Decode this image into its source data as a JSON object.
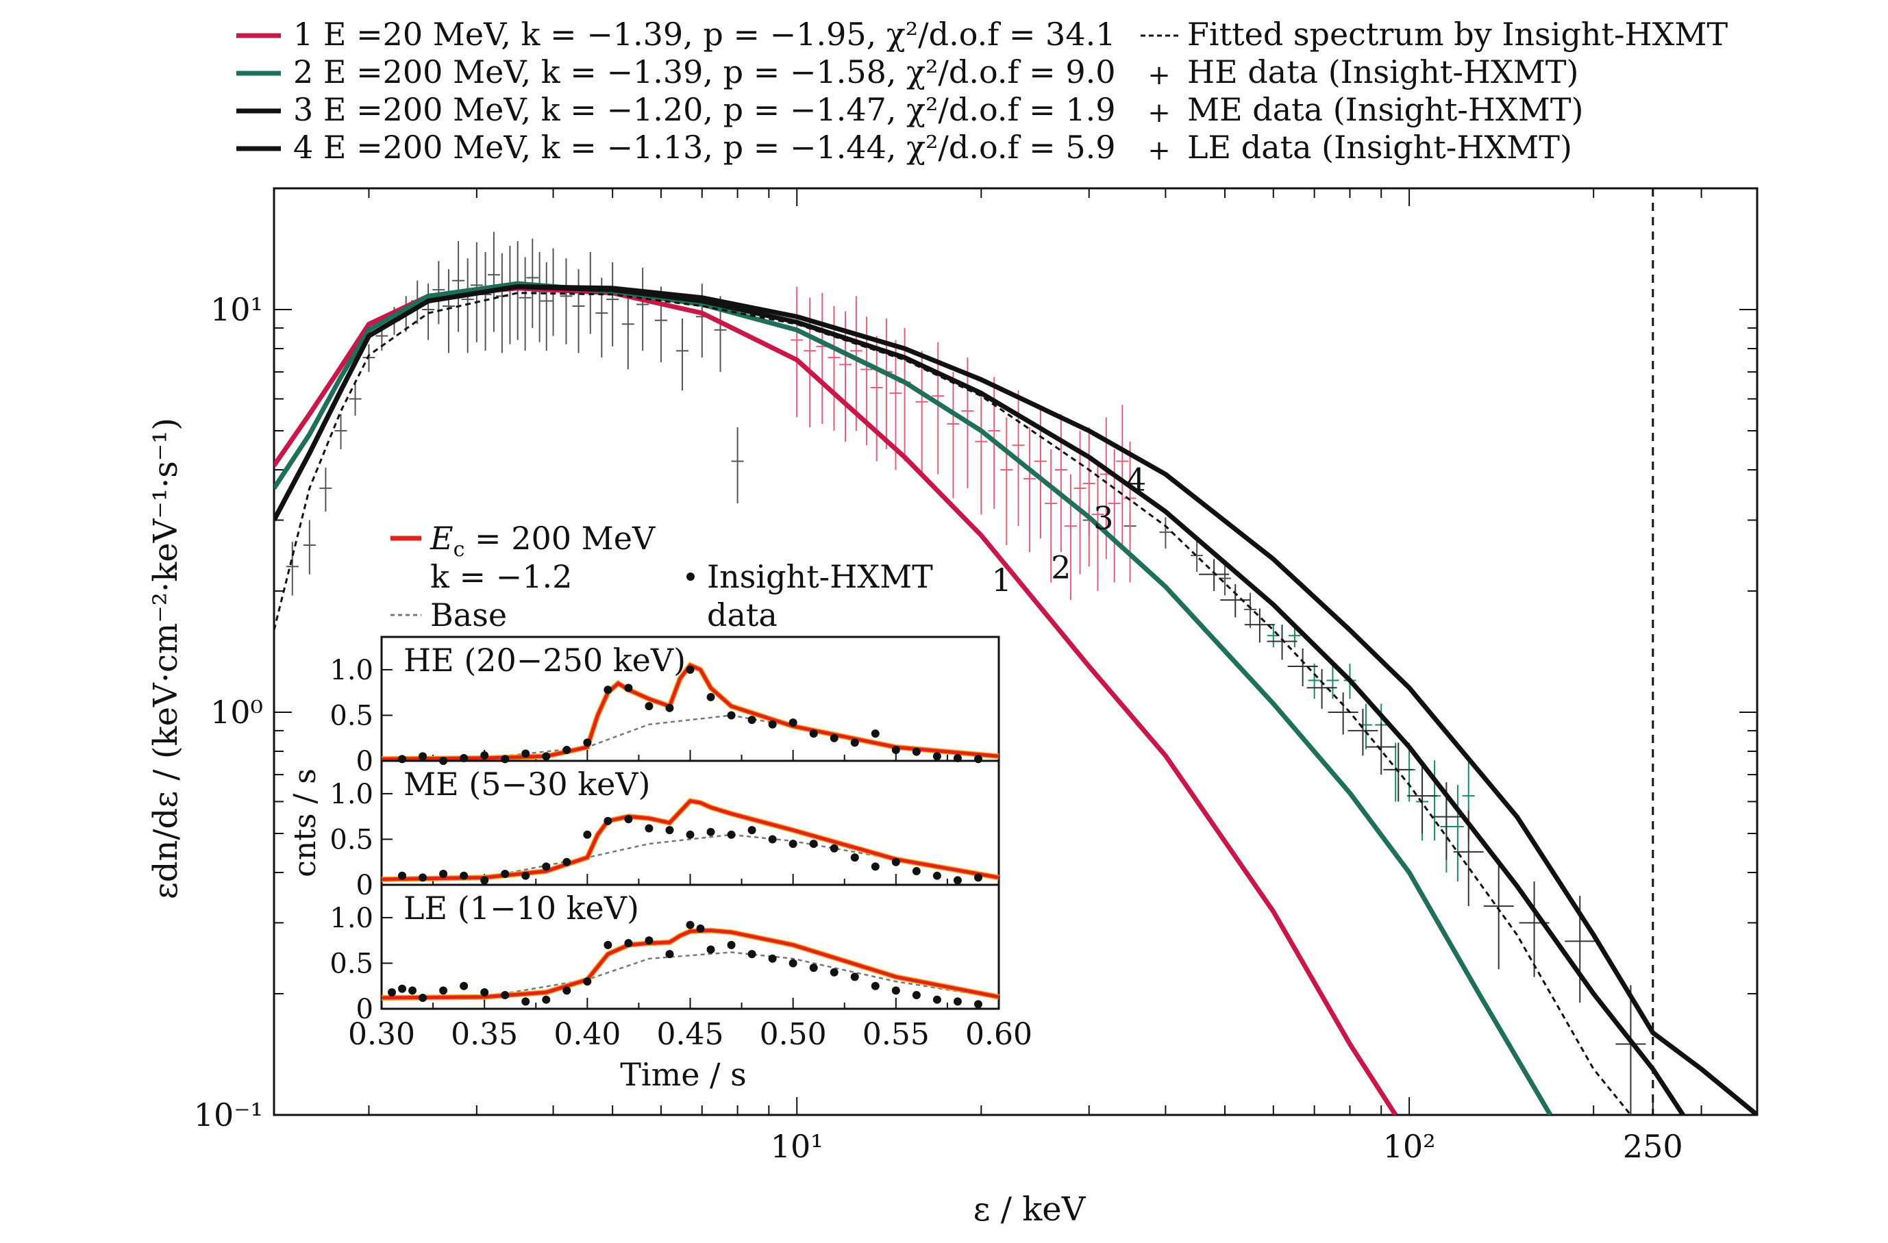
{
  "chart_data": [
    {
      "type": "line",
      "title": "",
      "xlabel": "ε / keV",
      "ylabel": "εdn/dε / (keV·cm⁻²·keV⁻¹·s⁻¹)",
      "x_scale": "log",
      "y_scale": "log",
      "xlim": [
        1.4,
        370
      ],
      "ylim": [
        0.1,
        20
      ],
      "x_ticks": [
        {
          "value": 10,
          "label": "10¹"
        },
        {
          "value": 100,
          "label": "10²"
        },
        {
          "value": 250,
          "label": "250"
        }
      ],
      "y_ticks": [
        {
          "value": 0.1,
          "label": "10⁻¹"
        },
        {
          "value": 1,
          "label": "10⁰"
        },
        {
          "value": 10,
          "label": "10¹"
        }
      ],
      "vline": 250,
      "grid": false,
      "legend_position": "top",
      "legend": [
        {
          "key": "m1",
          "text": "1 E =20 MeV, k = −1.39, p = −1.95, χ²/d.o.f = 34.1",
          "color": "#c8184a"
        },
        {
          "key": "m2",
          "text": "2 E =200 MeV, k = −1.39, p = −1.58, χ²/d.o.f = 9.0",
          "color": "#1f6f5a"
        },
        {
          "key": "m3",
          "text": "3 E =200 MeV, k = −1.20, p = −1.47, χ²/d.o.f = 1.9",
          "color": "#111111"
        },
        {
          "key": "m4",
          "text": "4 E =200 MeV, k = −1.13, p = −1.44, χ²/d.o.f = 5.9",
          "color": "#111111"
        },
        {
          "key": "fit",
          "text": "Fitted spectrum by Insight-HXMT",
          "color": "#111111"
        },
        {
          "key": "he",
          "text": "HE data (Insight-HXMT)",
          "color": "#1a8a6a"
        },
        {
          "key": "me",
          "text": "ME data (Insight-HXMT)",
          "color": "#e0607a"
        },
        {
          "key": "le",
          "text": "LE data (Insight-HXMT)",
          "color": "#333333"
        }
      ],
      "series": [
        {
          "key": "m1",
          "label": "1",
          "color": "#c8184a",
          "x": [
            1.4,
            1.6,
            1.8,
            2.0,
            2.5,
            3.5,
            5,
            7,
            10,
            15,
            20,
            30,
            40,
            60,
            80,
            95
          ],
          "y": [
            4.1,
            5.5,
            7.2,
            9.2,
            10.8,
            11.3,
            11.0,
            9.8,
            7.5,
            4.3,
            2.75,
            1.3,
            0.78,
            0.32,
            0.15,
            0.1
          ]
        },
        {
          "key": "m2",
          "label": "2",
          "color": "#1f6f5a",
          "x": [
            1.4,
            1.6,
            1.8,
            2.0,
            2.5,
            3.5,
            5,
            7,
            10,
            15,
            20,
            30,
            40,
            60,
            80,
            100,
            130,
            170
          ],
          "y": [
            3.6,
            4.9,
            6.8,
            8.9,
            10.8,
            11.6,
            11.1,
            10.3,
            8.9,
            6.6,
            5.0,
            3.05,
            2.05,
            1.05,
            0.63,
            0.4,
            0.2,
            0.1
          ]
        },
        {
          "key": "m3",
          "label": "3",
          "color": "#111111",
          "x": [
            1.4,
            1.6,
            1.8,
            2.0,
            2.5,
            3.5,
            5,
            7,
            10,
            15,
            20,
            30,
            40,
            60,
            80,
            100,
            150,
            200,
            250,
            280
          ],
          "y": [
            3.0,
            4.4,
            6.3,
            8.6,
            10.5,
            11.4,
            11.2,
            10.5,
            9.3,
            7.6,
            6.2,
            4.3,
            3.15,
            1.85,
            1.2,
            0.82,
            0.37,
            0.2,
            0.13,
            0.1
          ]
        },
        {
          "key": "m4",
          "label": "4",
          "color": "#111111",
          "x": [
            1.4,
            1.6,
            1.8,
            2.0,
            2.5,
            3.5,
            5,
            7,
            10,
            15,
            20,
            30,
            40,
            60,
            80,
            100,
            150,
            200,
            250,
            300,
            370
          ],
          "y": [
            3.0,
            4.4,
            6.3,
            8.6,
            10.5,
            11.4,
            11.3,
            10.7,
            9.6,
            8.0,
            6.7,
            5.0,
            3.9,
            2.4,
            1.6,
            1.15,
            0.55,
            0.28,
            0.16,
            0.13,
            0.1
          ]
        },
        {
          "key": "fit",
          "color": "#111111",
          "dashed": true,
          "x": [
            1.4,
            1.6,
            1.8,
            2.0,
            2.5,
            3.5,
            5,
            7,
            10,
            15,
            20,
            30,
            40,
            60,
            80,
            100,
            150,
            200,
            230
          ],
          "y": [
            1.6,
            3.6,
            5.6,
            7.7,
            9.8,
            11.0,
            10.9,
            10.2,
            9.2,
            7.5,
            6.1,
            4.0,
            2.9,
            1.6,
            1.0,
            0.66,
            0.28,
            0.13,
            0.1
          ]
        }
      ],
      "error_series": [
        {
          "key": "le",
          "color": "#555555",
          "x": [
            1.5,
            1.6,
            1.7,
            1.8,
            1.9,
            2.0,
            2.1,
            2.2,
            2.3,
            2.4,
            2.5,
            2.6,
            2.7,
            2.8,
            2.9,
            3.0,
            3.1,
            3.2,
            3.3,
            3.4,
            3.5,
            3.6,
            3.7,
            3.8,
            3.9,
            4.0,
            4.2,
            4.4,
            4.6,
            4.8,
            5.0,
            5.3,
            5.6,
            6.0,
            6.5,
            7.0,
            7.5,
            8.0,
            30,
            35,
            40,
            45,
            50,
            55
          ],
          "y": [
            2.3,
            2.6,
            3.6,
            5.0,
            6.0,
            7.6,
            8.6,
            9.4,
            9.8,
            10.5,
            10.0,
            11.2,
            10.2,
            11.8,
            10.6,
            11.5,
            10.9,
            12.2,
            10.8,
            11.3,
            11.6,
            10.7,
            12.0,
            11.1,
            10.5,
            11.4,
            10.8,
            10.2,
            11.3,
            9.8,
            10.6,
            9.2,
            10.3,
            9.4,
            7.9,
            9.6,
            8.9,
            4.2,
            3.0,
            2.9,
            2.8,
            2.45,
            2.15,
            1.8
          ],
          "err": [
            0.35,
            0.4,
            0.45,
            0.5,
            0.55,
            0.6,
            0.7,
            0.75,
            1.0,
            1.3,
            1.6,
            2.0,
            2.4,
            3.0,
            2.8,
            3.2,
            3.0,
            3.4,
            3.0,
            3.1,
            3.2,
            2.8,
            3.0,
            2.8,
            2.6,
            2.8,
            2.6,
            2.4,
            2.6,
            2.2,
            2.5,
            2.1,
            2.4,
            2.0,
            1.6,
            2.0,
            1.9,
            0.9,
            0.25,
            0.25,
            0.25,
            0.22,
            0.2,
            0.18
          ]
        },
        {
          "key": "me",
          "color": "#e0607a",
          "x": [
            10,
            10.5,
            11,
            11.5,
            12,
            12.5,
            13,
            13.5,
            14,
            14.5,
            15,
            16,
            17,
            18,
            19,
            20,
            21,
            22,
            23,
            24,
            25,
            26,
            27,
            28,
            29,
            30,
            31,
            32,
            33,
            34,
            35
          ],
          "y": [
            8.4,
            7.9,
            8.1,
            7.6,
            7.3,
            7.9,
            7.1,
            6.4,
            7.0,
            6.2,
            6.6,
            5.9,
            6.1,
            5.2,
            5.6,
            4.7,
            5.0,
            4.0,
            4.6,
            3.8,
            4.2,
            3.3,
            4.0,
            2.9,
            3.6,
            3.7,
            3.1,
            3.9,
            3.3,
            4.2,
            3.4
          ],
          "err": [
            3.0,
            2.8,
            2.9,
            2.6,
            2.6,
            2.9,
            2.5,
            2.2,
            2.5,
            2.2,
            2.4,
            2.0,
            2.2,
            1.8,
            2.0,
            1.6,
            1.8,
            1.4,
            1.7,
            1.3,
            1.5,
            1.2,
            1.5,
            1.0,
            1.4,
            1.4,
            1.1,
            1.5,
            1.2,
            1.6,
            1.3
          ]
        },
        {
          "key": "he",
          "color": "#1a8a6a",
          "x": [
            60,
            65,
            70,
            75,
            80,
            85,
            90,
            95,
            100,
            105,
            110,
            115,
            120,
            125
          ],
          "y": [
            1.55,
            1.55,
            1.2,
            1.2,
            1.2,
            0.93,
            0.93,
            0.72,
            0.72,
            0.6,
            0.62,
            0.52,
            0.52,
            0.62
          ],
          "err": [
            0.1,
            0.1,
            0.12,
            0.12,
            0.12,
            0.12,
            0.12,
            0.12,
            0.12,
            0.12,
            0.14,
            0.12,
            0.14,
            0.14
          ]
        },
        {
          "key": "le_hi",
          "color": "#333333",
          "x": [
            48,
            52,
            57,
            62,
            67,
            72,
            78,
            84,
            90,
            96,
            105,
            115,
            125,
            140,
            160,
            190,
            230
          ],
          "y": [
            2.2,
            1.9,
            1.65,
            1.5,
            1.3,
            1.15,
            1.0,
            0.9,
            0.82,
            0.72,
            0.62,
            0.55,
            0.45,
            0.33,
            0.3,
            0.27,
            0.15
          ],
          "err": [
            0.2,
            0.18,
            0.16,
            0.15,
            0.14,
            0.13,
            0.12,
            0.12,
            0.12,
            0.12,
            0.12,
            0.12,
            0.12,
            0.1,
            0.08,
            0.08,
            0.06
          ]
        }
      ],
      "annotations": [
        "1",
        "2",
        "3",
        "4"
      ]
    },
    {
      "type": "line",
      "title": "",
      "xlabel": "Time / s",
      "ylabel": "cnts / s",
      "xlim": [
        0.3,
        0.6
      ],
      "x_ticks": [
        "0.30",
        "0.35",
        "0.40",
        "0.45",
        "0.50",
        "0.55",
        "0.60"
      ],
      "y_ticks": [
        "0",
        "0.5",
        "1.0"
      ],
      "legend": [
        {
          "text": "E = 200 MeV",
          "sub": "c",
          "prefix": "E",
          "color": "#e0241a"
        },
        {
          "text": "k = −1.2"
        },
        {
          "text": "Base",
          "color": "#777777",
          "dashed": true
        },
        {
          "text": "Insight-HXMT data",
          "marker": "dot"
        }
      ],
      "panels": [
        {
          "label": "HE (20−250 keV)",
          "ylim": [
            0,
            1.3
          ],
          "model_x": [
            0.3,
            0.35,
            0.38,
            0.4,
            0.405,
            0.41,
            0.415,
            0.42,
            0.43,
            0.44,
            0.445,
            0.45,
            0.455,
            0.46,
            0.47,
            0.5,
            0.55,
            0.6
          ],
          "model_y": [
            0.02,
            0.03,
            0.05,
            0.15,
            0.5,
            0.75,
            0.85,
            0.78,
            0.68,
            0.6,
            0.9,
            1.05,
            1.0,
            0.8,
            0.6,
            0.38,
            0.15,
            0.05
          ],
          "base_x": [
            0.3,
            0.35,
            0.4,
            0.43,
            0.47,
            0.5,
            0.55,
            0.6
          ],
          "base_y": [
            0.02,
            0.03,
            0.15,
            0.4,
            0.5,
            0.38,
            0.15,
            0.05
          ],
          "dots_x": [
            0.31,
            0.32,
            0.33,
            0.34,
            0.35,
            0.36,
            0.37,
            0.38,
            0.39,
            0.4,
            0.41,
            0.42,
            0.43,
            0.44,
            0.45,
            0.46,
            0.47,
            0.48,
            0.49,
            0.5,
            0.51,
            0.52,
            0.53,
            0.54,
            0.55,
            0.56,
            0.57,
            0.58,
            0.59
          ],
          "dots_y": [
            0.02,
            0.05,
            0.0,
            0.03,
            0.06,
            0.02,
            0.08,
            0.05,
            0.12,
            0.2,
            0.78,
            0.8,
            0.6,
            0.58,
            1.0,
            0.7,
            0.5,
            0.45,
            0.4,
            0.42,
            0.3,
            0.25,
            0.2,
            0.3,
            0.12,
            0.1,
            0.05,
            0.03,
            0.02
          ]
        },
        {
          "label": "ME (5−30 keV)",
          "ylim": [
            0,
            1.3
          ],
          "model_x": [
            0.3,
            0.35,
            0.38,
            0.4,
            0.405,
            0.41,
            0.42,
            0.43,
            0.44,
            0.445,
            0.45,
            0.455,
            0.46,
            0.47,
            0.5,
            0.55,
            0.6
          ],
          "model_y": [
            0.06,
            0.08,
            0.15,
            0.3,
            0.55,
            0.7,
            0.75,
            0.73,
            0.68,
            0.8,
            0.92,
            0.9,
            0.85,
            0.78,
            0.6,
            0.28,
            0.08
          ],
          "base_x": [
            0.3,
            0.35,
            0.4,
            0.43,
            0.47,
            0.5,
            0.55,
            0.6
          ],
          "base_y": [
            0.06,
            0.08,
            0.3,
            0.45,
            0.55,
            0.48,
            0.28,
            0.08
          ],
          "dots_x": [
            0.31,
            0.32,
            0.33,
            0.34,
            0.35,
            0.36,
            0.37,
            0.38,
            0.39,
            0.4,
            0.41,
            0.42,
            0.43,
            0.44,
            0.45,
            0.46,
            0.47,
            0.48,
            0.49,
            0.5,
            0.51,
            0.52,
            0.53,
            0.54,
            0.55,
            0.56,
            0.57,
            0.58,
            0.59
          ],
          "dots_y": [
            0.1,
            0.08,
            0.12,
            0.1,
            0.05,
            0.12,
            0.1,
            0.2,
            0.25,
            0.55,
            0.7,
            0.72,
            0.62,
            0.6,
            0.55,
            0.58,
            0.55,
            0.6,
            0.5,
            0.45,
            0.45,
            0.4,
            0.3,
            0.2,
            0.25,
            0.15,
            0.1,
            0.05,
            0.08
          ]
        },
        {
          "label": "LE (1−10 keV)",
          "ylim": [
            0,
            1.3
          ],
          "model_x": [
            0.3,
            0.35,
            0.38,
            0.4,
            0.41,
            0.42,
            0.43,
            0.44,
            0.445,
            0.45,
            0.46,
            0.47,
            0.5,
            0.55,
            0.6
          ],
          "model_y": [
            0.12,
            0.13,
            0.18,
            0.32,
            0.6,
            0.7,
            0.72,
            0.73,
            0.8,
            0.85,
            0.86,
            0.84,
            0.7,
            0.35,
            0.13
          ],
          "base_x": [
            0.3,
            0.35,
            0.4,
            0.43,
            0.47,
            0.5,
            0.55,
            0.6
          ],
          "base_y": [
            0.12,
            0.13,
            0.32,
            0.55,
            0.62,
            0.55,
            0.3,
            0.12
          ],
          "dots_x": [
            0.305,
            0.31,
            0.315,
            0.32,
            0.33,
            0.34,
            0.35,
            0.36,
            0.37,
            0.38,
            0.39,
            0.4,
            0.41,
            0.42,
            0.43,
            0.44,
            0.45,
            0.455,
            0.46,
            0.47,
            0.48,
            0.49,
            0.5,
            0.51,
            0.52,
            0.53,
            0.54,
            0.55,
            0.56,
            0.57,
            0.58,
            0.59
          ],
          "dots_y": [
            0.18,
            0.22,
            0.2,
            0.12,
            0.2,
            0.25,
            0.18,
            0.15,
            0.08,
            0.1,
            0.2,
            0.3,
            0.7,
            0.72,
            0.75,
            0.6,
            0.92,
            0.88,
            0.65,
            0.7,
            0.6,
            0.55,
            0.5,
            0.45,
            0.4,
            0.35,
            0.25,
            0.2,
            0.15,
            0.1,
            0.08,
            0.05
          ]
        }
      ]
    }
  ]
}
